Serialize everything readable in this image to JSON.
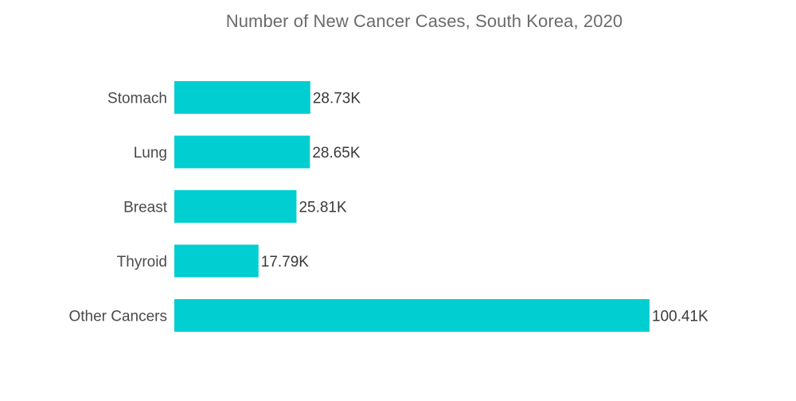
{
  "chart_data": {
    "type": "bar",
    "orientation": "horizontal",
    "title": "Number of New Cancer Cases, South Korea, 2020",
    "categories": [
      "Stomach",
      "Lung",
      "Breast",
      "Thyroid",
      "Other Cancers"
    ],
    "values": [
      28.73,
      28.65,
      25.81,
      17.79,
      100.41
    ],
    "value_labels": [
      "28.73K",
      "28.65K",
      "25.81K",
      "17.79K",
      "100.41K"
    ],
    "xlabel": "",
    "ylabel": "",
    "xlim": [
      0,
      100.41
    ],
    "grid": false,
    "legend": "none",
    "bar_color": "#00CED1"
  }
}
